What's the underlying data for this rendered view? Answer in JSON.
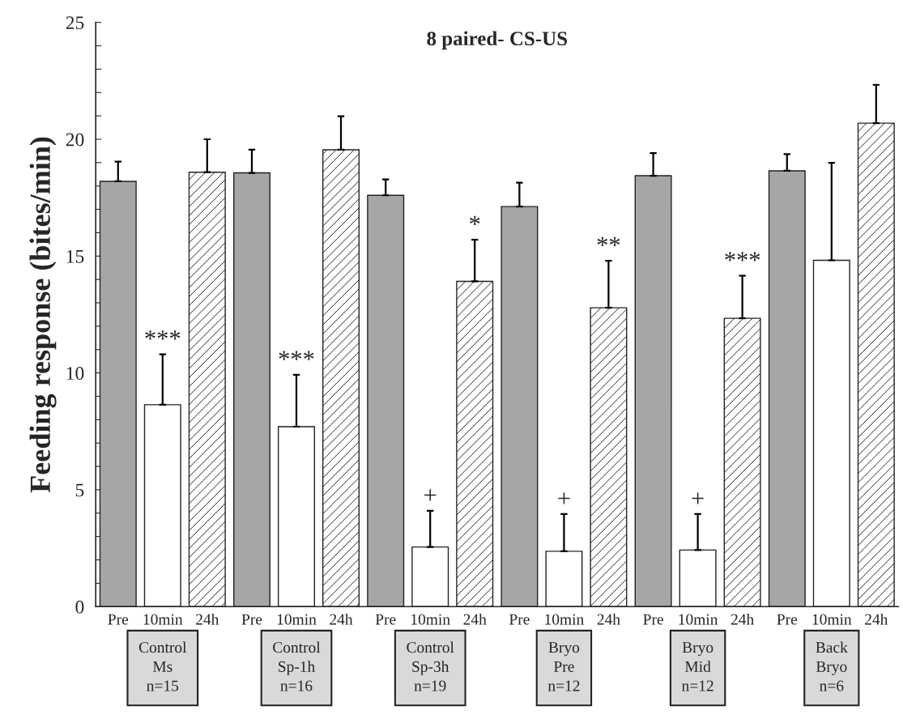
{
  "chart_data": {
    "type": "bar",
    "title": "8 paired- CS-US",
    "ylabel": "Feeding response (bites/min)",
    "categories": [
      "Control\nMs\nn=15",
      "Control\nSp-1h\nn=16",
      "Control\nSp-3h\nn=19",
      "Bryo\nPre\nn=12",
      "Bryo\nMid\nn=12",
      "Back\nBryo\nn=6"
    ],
    "series": [
      {
        "name": "Pre",
        "color": "#a6a6a6",
        "values": [
          18.2,
          18.56,
          17.6,
          17.12,
          18.44,
          18.65
        ],
        "errors": [
          [
            18.2,
            19.04
          ],
          [
            18.56,
            19.55
          ],
          [
            17.6,
            18.28
          ],
          [
            17.12,
            18.14
          ],
          [
            18.44,
            19.41
          ],
          [
            18.65,
            19.36
          ]
        ]
      },
      {
        "name": "10min",
        "color": "#ffffff",
        "values": [
          8.64,
          7.7,
          2.55,
          2.37,
          2.42,
          14.82
        ],
        "errors": [
          [
            8.64,
            10.8
          ],
          [
            7.7,
            9.92
          ],
          [
            2.55,
            4.1
          ],
          [
            2.37,
            3.96
          ],
          [
            2.42,
            3.96
          ],
          [
            14.82,
            18.99
          ]
        ],
        "value_labels": [
          "***",
          "***",
          "+",
          "+",
          "+",
          null
        ]
      },
      {
        "name": "24h",
        "color": "#ffffff",
        "values": [
          18.59,
          19.55,
          13.92,
          12.79,
          12.34,
          20.69
        ],
        "errors": [
          [
            18.59,
            20.0
          ],
          [
            19.55,
            20.98
          ],
          [
            13.92,
            15.7
          ],
          [
            12.79,
            14.8
          ],
          [
            12.34,
            14.16
          ],
          [
            20.69,
            22.33
          ]
        ],
        "value_labels": [
          null,
          null,
          "*",
          "**",
          "***",
          null
        ]
      }
    ],
    "ylim": [
      0,
      25
    ],
    "yticks": [
      0,
      {
        "value": 1,
        "label": null
      },
      {
        "value": 2,
        "label": null
      },
      {
        "value": 3,
        "label": null
      },
      {
        "value": 4,
        "label": null
      },
      5,
      {
        "value": 6,
        "label": null
      },
      {
        "value": 7,
        "label": null
      },
      {
        "value": 8,
        "label": null
      },
      {
        "value": 9,
        "label": null
      },
      10,
      {
        "value": 11,
        "label": null
      },
      {
        "value": 12,
        "label": null
      },
      {
        "value": 13,
        "label": null
      },
      {
        "value": 14,
        "label": null
      },
      15,
      {
        "value": 16,
        "label": null
      },
      {
        "value": 17,
        "label": null
      },
      {
        "value": 18,
        "label": null
      },
      {
        "value": 19,
        "label": null
      },
      20,
      {
        "value": 21,
        "label": null
      },
      {
        "value": 22,
        "label": null
      },
      {
        "value": 23,
        "label": null
      },
      {
        "value": 24,
        "label": null
      },
      25
    ],
    "grid": false,
    "legend": false
  }
}
